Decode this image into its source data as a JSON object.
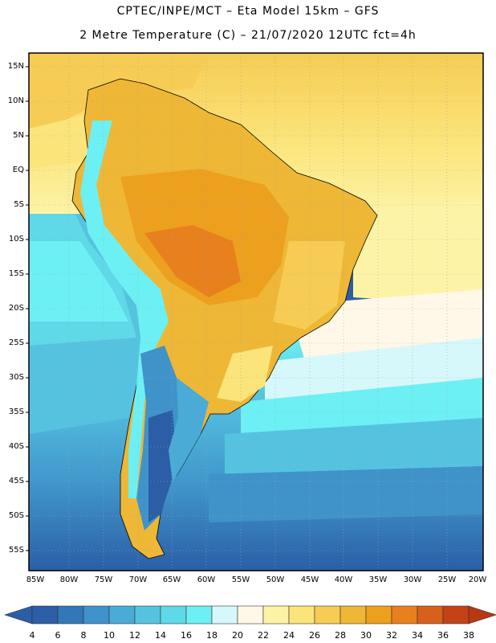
{
  "title": {
    "line1": "CPTEC/INPE/MCT –  Eta Model 15km – GFS",
    "line2": "2 Metre Temperature (C) – 21/07/2020 12UTC fct=4h"
  },
  "map": {
    "lat_labels": [
      "15N",
      "10N",
      "5N",
      "EQ",
      "5S",
      "10S",
      "15S",
      "20S",
      "25S",
      "30S",
      "35S",
      "40S",
      "45S",
      "50S",
      "55S"
    ],
    "lon_labels": [
      "85W",
      "80W",
      "75W",
      "70W",
      "65W",
      "60W",
      "55W",
      "50W",
      "45W",
      "40W",
      "35W",
      "30W",
      "25W",
      "20W"
    ]
  },
  "colorbar": {
    "labels": [
      "4",
      "6",
      "8",
      "10",
      "12",
      "14",
      "16",
      "18",
      "20",
      "22",
      "24",
      "26",
      "28",
      "30",
      "32",
      "34",
      "36",
      "38"
    ],
    "colors": [
      "#2b5ea6",
      "#3278b8",
      "#3f93c9",
      "#4aabd6",
      "#55c3e0",
      "#5fd8e8",
      "#6cf0f4",
      "#d6f8fa",
      "#fff8e8",
      "#fdf3a6",
      "#fbe47a",
      "#f6cc54",
      "#eeb736",
      "#eda01e",
      "#e8801e",
      "#d8601a",
      "#c44216"
    ]
  }
}
